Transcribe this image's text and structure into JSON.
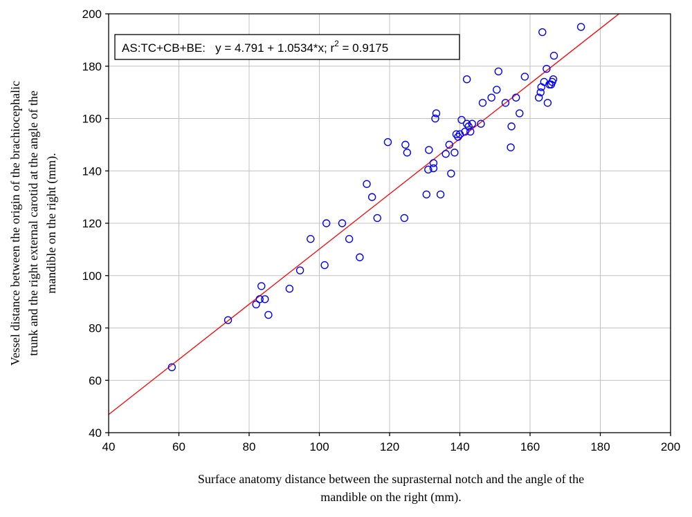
{
  "chart_data": {
    "type": "scatter",
    "annotation": {
      "prefix": "AS:TC+CB+BE:   y = 4.791 + 1.0534*x; r",
      "superscript": "2",
      "suffix": " = 0.9175"
    },
    "xlabel_lines": [
      "Surface anatomy distance between the suprasternal notch and the angle of the",
      "mandible on the right (mm)."
    ],
    "ylabel_lines": [
      "Vessel distance between the origin of the brachiocephalic",
      "trunk and the right external carotid at the angle of the",
      "mandible on the right (mm)."
    ],
    "xlim": [
      40,
      200
    ],
    "ylim": [
      40,
      200
    ],
    "xticks": [
      "40",
      "60",
      "80",
      "100",
      "120",
      "140",
      "160",
      "180",
      "200"
    ],
    "yticks": [
      "40",
      "60",
      "80",
      "100",
      "120",
      "140",
      "160",
      "180",
      "200"
    ],
    "grid": true,
    "fit": {
      "intercept": 4.791,
      "slope": 1.0534,
      "r2": 0.9175
    },
    "colors": {
      "points": "#0000ff",
      "fit_line": "#ff0000",
      "grid": "#c0c0c0",
      "axes": "#000000"
    },
    "points": [
      [
        58,
        65
      ],
      [
        74,
        83
      ],
      [
        82,
        89
      ],
      [
        83,
        91
      ],
      [
        83.5,
        96
      ],
      [
        84.5,
        91
      ],
      [
        85.5,
        85
      ],
      [
        91.5,
        95
      ],
      [
        94.5,
        102
      ],
      [
        97.5,
        114
      ],
      [
        101.5,
        104
      ],
      [
        102,
        120
      ],
      [
        106.5,
        120
      ],
      [
        108.5,
        114
      ],
      [
        111.5,
        107
      ],
      [
        113.5,
        135
      ],
      [
        115,
        130
      ],
      [
        116.5,
        122
      ],
      [
        119.5,
        151
      ],
      [
        124.2,
        122
      ],
      [
        124.5,
        150
      ],
      [
        125,
        147
      ],
      [
        130.5,
        131
      ],
      [
        131,
        140.5
      ],
      [
        131.2,
        148
      ],
      [
        132.5,
        141
      ],
      [
        132.5,
        143
      ],
      [
        133,
        160
      ],
      [
        133.3,
        162
      ],
      [
        134.5,
        131
      ],
      [
        136,
        146.5
      ],
      [
        137,
        150
      ],
      [
        137.5,
        139
      ],
      [
        138.5,
        147
      ],
      [
        139,
        154
      ],
      [
        139.5,
        153
      ],
      [
        140,
        154
      ],
      [
        140.5,
        159.5
      ],
      [
        141.5,
        155
      ],
      [
        142,
        158
      ],
      [
        142,
        175
      ],
      [
        142.5,
        157
      ],
      [
        143,
        155
      ],
      [
        143.5,
        158
      ],
      [
        146,
        158
      ],
      [
        146.5,
        166
      ],
      [
        149,
        168
      ],
      [
        150.5,
        171
      ],
      [
        151,
        178
      ],
      [
        153,
        166
      ],
      [
        154.5,
        149
      ],
      [
        154.7,
        157
      ],
      [
        156,
        168
      ],
      [
        157,
        162
      ],
      [
        158.5,
        176
      ],
      [
        162.5,
        168
      ],
      [
        163,
        170
      ],
      [
        163.2,
        172
      ],
      [
        163.5,
        193
      ],
      [
        164,
        174
      ],
      [
        164.7,
        179
      ],
      [
        165,
        166
      ],
      [
        165.5,
        173
      ],
      [
        166,
        173
      ],
      [
        166.3,
        174
      ],
      [
        166.6,
        175
      ],
      [
        166.8,
        184
      ],
      [
        174.5,
        195
      ]
    ]
  }
}
